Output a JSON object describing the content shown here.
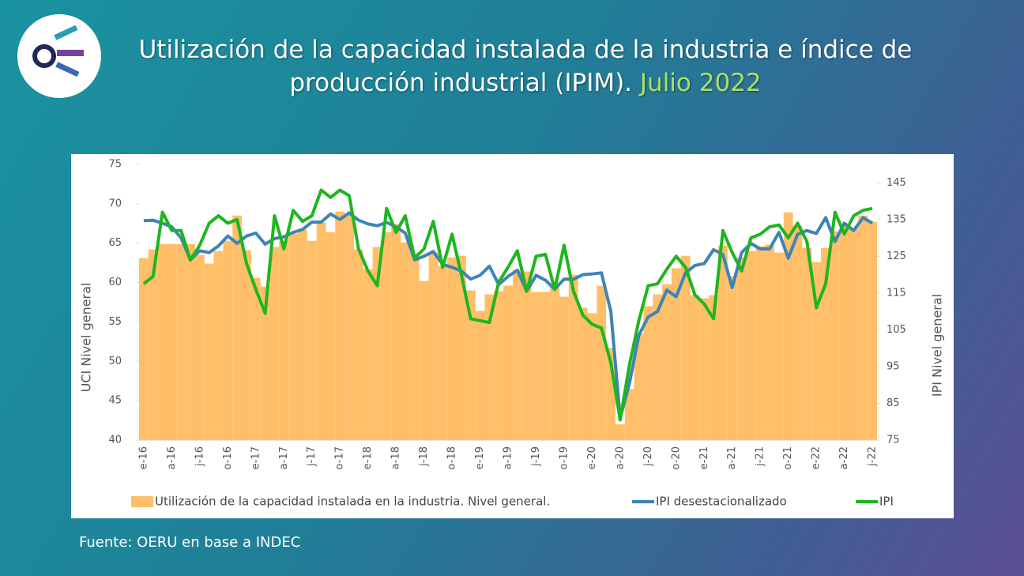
{
  "title": "Utilización de la capacidad instalada de la industria e índice de producción industrial (IPIM).",
  "title_highlight": "Julio 2022",
  "source": "Fuente: OERU en base a INDEC",
  "chart_data": {
    "type": "combo",
    "y_label": "UCI Nivel general",
    "y2_label": "IPI Nivel general",
    "categories": [
      "e-16",
      null,
      null,
      "a-16",
      null,
      null,
      "j-16",
      null,
      null,
      "o-16",
      null,
      null,
      "e-17",
      null,
      null,
      "a-17",
      null,
      null,
      "j-17",
      null,
      null,
      "o-17",
      null,
      null,
      "e-18",
      null,
      null,
      "a-18",
      null,
      null,
      "j-18",
      null,
      null,
      "o-18",
      null,
      null,
      "e-19",
      null,
      null,
      "a-19",
      null,
      null,
      "j-19",
      null,
      null,
      "o-19",
      null,
      null,
      "e-20",
      null,
      null,
      "a-20",
      null,
      null,
      "j-20",
      null,
      null,
      "o-20",
      null,
      null,
      "e-21",
      null,
      null,
      "a-21",
      null,
      null,
      "j-21",
      null,
      null,
      "o-21",
      null,
      null,
      "e-22",
      null,
      null,
      "a-22",
      null,
      null,
      "j-22"
    ],
    "ylim": [
      40,
      75
    ],
    "yticks": [
      40,
      45,
      50,
      55,
      60,
      65,
      70,
      75
    ],
    "y2lim": [
      75,
      150
    ],
    "y2ticks": [
      75,
      85,
      95,
      105,
      115,
      125,
      135,
      145
    ],
    "legend": "bottom",
    "series": [
      {
        "name": "Utilización de la capacidad instalada en la industria. Nivel general.",
        "type": "bar",
        "color": "#ffbf69",
        "values": [
          63.1,
          64.2,
          64.9,
          64.9,
          64.9,
          64.9,
          63.5,
          62.4,
          64.0,
          65.3,
          68.5,
          64.1,
          60.6,
          59.5,
          64.5,
          65.3,
          66.2,
          66.7,
          65.3,
          67.6,
          66.4,
          69.0,
          68.6,
          64.2,
          61.7,
          64.5,
          66.4,
          67.4,
          65.1,
          63.7,
          60.2,
          63.8,
          62.1,
          63.2,
          63.4,
          59.0,
          56.4,
          58.5,
          58.9,
          59.6,
          61.6,
          61.4,
          58.8,
          58.8,
          59.4,
          58.2,
          61.0,
          56.8,
          56.1,
          59.6,
          51.7,
          42.0,
          46.5,
          53.5,
          57.0,
          58.5,
          59.8,
          61.8,
          63.4,
          58.4,
          58.0,
          58.4,
          64.7,
          60.8,
          63.2,
          64.0,
          64.6,
          64.8,
          63.8,
          68.9,
          67.2,
          64.4,
          62.6,
          64.4,
          66.5,
          67.2,
          66.9,
          68.5,
          67.7
        ]
      },
      {
        "name": "IPI desestacionalizado",
        "type": "line",
        "axis": "y2",
        "color": "#3d84b8",
        "values": [
          134.7,
          134.8,
          134.0,
          133.0,
          130.0,
          124.0,
          126.5,
          126.0,
          127.8,
          130.5,
          128.5,
          130.5,
          131.3,
          128.3,
          129.8,
          130.3,
          131.5,
          132.3,
          134.3,
          134.3,
          136.5,
          135.0,
          136.8,
          134.8,
          133.8,
          133.3,
          134.2,
          133.0,
          131.3,
          124.0,
          125.0,
          126.3,
          122.8,
          122.0,
          121.0,
          118.8,
          119.8,
          122.3,
          117.3,
          119.5,
          121.2,
          115.5,
          119.8,
          118.5,
          116.0,
          118.8,
          118.7,
          120.0,
          120.2,
          120.5,
          110.0,
          81.0,
          90.5,
          103.5,
          108.5,
          110.0,
          115.8,
          114.0,
          120.5,
          122.5,
          123.0,
          126.8,
          125.5,
          116.5,
          126.0,
          128.5,
          127.0,
          127.0,
          131.5,
          124.5,
          131.0,
          132.0,
          131.2,
          135.5,
          129.0,
          134.0,
          132.0,
          135.5,
          134.0
        ]
      },
      {
        "name": "IPI",
        "type": "line",
        "axis": "y2",
        "color": "#1fb51f",
        "values": [
          117.5,
          119.5,
          137.0,
          132.0,
          132.0,
          124.0,
          128.0,
          134.0,
          136.0,
          134.0,
          135.0,
          123.0,
          116.0,
          109.5,
          136.0,
          127.0,
          137.5,
          134.5,
          136.0,
          143.0,
          141.0,
          143.0,
          141.5,
          127.0,
          121.0,
          117.0,
          138.0,
          131.5,
          136.0,
          124.5,
          127.0,
          134.5,
          122.0,
          131.0,
          120.0,
          108.0,
          107.5,
          107.0,
          118.0,
          122.0,
          126.5,
          115.5,
          125.0,
          125.5,
          116.0,
          128.0,
          115.5,
          109.0,
          106.5,
          105.5,
          96.0,
          80.5,
          95.5,
          107.5,
          117.0,
          117.5,
          121.5,
          125.0,
          122.0,
          114.5,
          112.0,
          108.0,
          132.0,
          126.0,
          121.0,
          130.0,
          131.0,
          133.0,
          133.5,
          130.0,
          134.0,
          129.0,
          111.0,
          117.5,
          137.0,
          131.0,
          136.0,
          137.5,
          138.0
        ]
      }
    ]
  }
}
